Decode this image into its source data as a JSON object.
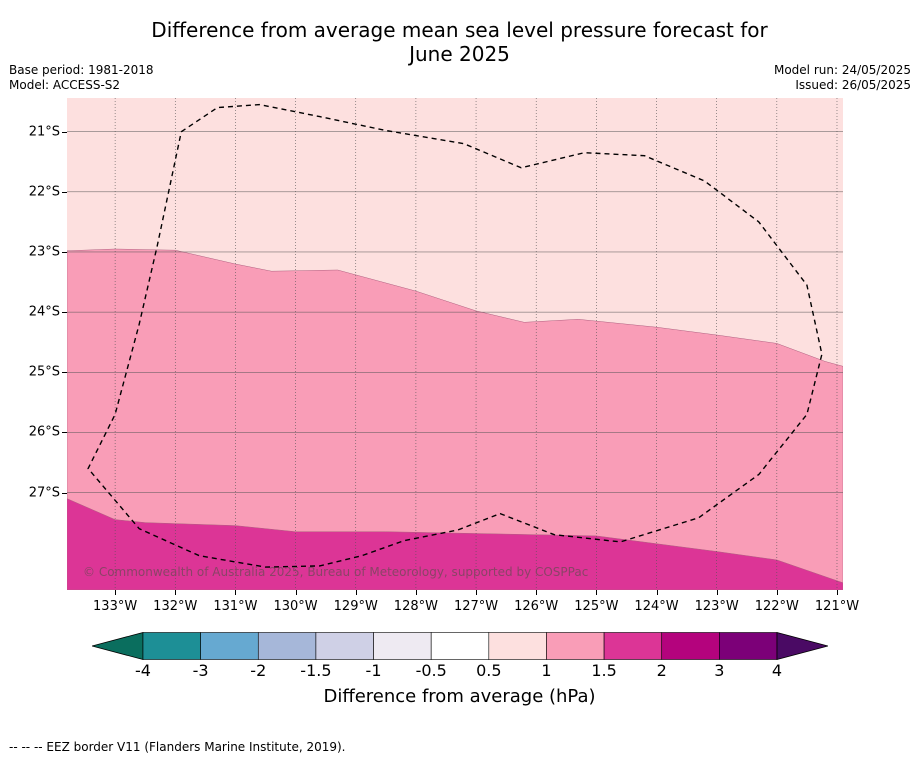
{
  "title": "Difference from average mean sea level pressure forecast for June 2025",
  "base_period": "Base period: 1981-2018",
  "model": "Model: ACCESS-S2",
  "model_run": "Model run: 24/05/2025",
  "issued": "Issued: 26/05/2025",
  "copyright": "© Commonwealth of Australia 2025, Bureau of Meteorology, supported by COSPPac",
  "footnote": "--  --  -- EEZ border V11 (Flanders Marine Institute, 2019).",
  "colorbar": {
    "title": "Difference from average (hPa)",
    "tick_labels": [
      "-4",
      "-3",
      "-2",
      "-1.5",
      "-1",
      "-0.5",
      "0.5",
      "1",
      "1.5",
      "2",
      "3",
      "4"
    ],
    "colors": [
      "#1d8f96",
      "#66a9d1",
      "#a6b7d9",
      "#cfd0e6",
      "#eeeaf2",
      "#ffffff",
      "#fde0df",
      "#f99db7",
      "#dc3596",
      "#b4037d",
      "#7c0078"
    ],
    "under_color": "#0a6e5e",
    "over_color": "#4a0a64"
  },
  "map": {
    "lon_labels": [
      "133°W",
      "132°W",
      "131°W",
      "130°W",
      "129°W",
      "128°W",
      "127°W",
      "126°W",
      "125°W",
      "124°W",
      "123°W",
      "122°W",
      "121°W"
    ],
    "lat_labels": [
      "21°S",
      "22°S",
      "23°S",
      "24°S",
      "25°S",
      "26°S",
      "27°S"
    ],
    "lon_values": [
      -133,
      -132,
      -131,
      -130,
      -129,
      -128,
      -127,
      -126,
      -125,
      -124,
      -123,
      -122,
      -121
    ],
    "lat_values": [
      -21,
      -22,
      -23,
      -24,
      -25,
      -26,
      -27
    ],
    "lon_range": [
      -133.8,
      -120.9
    ],
    "lat_range": [
      -20.44,
      -28.62
    ],
    "regions": [
      {
        "name": "0.5 to 1 hPa",
        "color": "#fde0df",
        "boundary": [
          [
            -133.8,
            -20.44
          ],
          [
            -120.9,
            -20.44
          ],
          [
            -120.9,
            -28.62
          ],
          [
            -133.8,
            -28.62
          ]
        ]
      },
      {
        "name": "1 to 1.5 hPa",
        "color": "#f99db7",
        "boundary": [
          [
            -133.8,
            -22.98
          ],
          [
            -133.0,
            -22.95
          ],
          [
            -132.0,
            -22.97
          ],
          [
            -131.0,
            -23.2
          ],
          [
            -130.4,
            -23.32
          ],
          [
            -129.3,
            -23.3
          ],
          [
            -128.0,
            -23.65
          ],
          [
            -127.0,
            -23.98
          ],
          [
            -126.2,
            -24.17
          ],
          [
            -125.3,
            -24.12
          ],
          [
            -124.0,
            -24.25
          ],
          [
            -123.0,
            -24.38
          ],
          [
            -122.0,
            -24.52
          ],
          [
            -121.2,
            -24.82
          ],
          [
            -120.9,
            -24.9
          ],
          [
            -120.9,
            -28.62
          ],
          [
            -133.8,
            -28.62
          ]
        ]
      },
      {
        "name": "1.5 to 2 hPa",
        "color": "#dc3596",
        "boundary": [
          [
            -133.8,
            -27.1
          ],
          [
            -133.0,
            -27.45
          ],
          [
            -132.5,
            -27.5
          ],
          [
            -131.0,
            -27.55
          ],
          [
            -130.0,
            -27.65
          ],
          [
            -128.5,
            -27.65
          ],
          [
            -126.0,
            -27.7
          ],
          [
            -125.0,
            -27.72
          ],
          [
            -124.0,
            -27.85
          ],
          [
            -123.0,
            -27.98
          ],
          [
            -122.0,
            -28.12
          ],
          [
            -120.9,
            -28.5
          ],
          [
            -120.9,
            -28.62
          ],
          [
            -133.8,
            -28.62
          ]
        ]
      }
    ],
    "eez_border": [
      [
        -131.9,
        -21.0
      ],
      [
        -131.3,
        -20.6
      ],
      [
        -130.6,
        -20.55
      ],
      [
        -129.6,
        -20.75
      ],
      [
        -128.5,
        -20.98
      ],
      [
        -127.2,
        -21.2
      ],
      [
        -126.25,
        -21.6
      ],
      [
        -125.2,
        -21.35
      ],
      [
        -124.2,
        -21.4
      ],
      [
        -123.2,
        -21.82
      ],
      [
        -122.3,
        -22.5
      ],
      [
        -121.5,
        -23.55
      ],
      [
        -121.25,
        -24.7
      ],
      [
        -121.5,
        -25.7
      ],
      [
        -122.3,
        -26.7
      ],
      [
        -123.3,
        -27.42
      ],
      [
        -124.6,
        -27.82
      ],
      [
        -125.7,
        -27.7
      ],
      [
        -126.6,
        -27.35
      ],
      [
        -127.3,
        -27.62
      ],
      [
        -128.2,
        -27.8
      ],
      [
        -128.9,
        -28.05
      ],
      [
        -129.6,
        -28.22
      ],
      [
        -130.5,
        -28.24
      ],
      [
        -131.6,
        -28.05
      ],
      [
        -132.6,
        -27.6
      ],
      [
        -133.45,
        -26.6
      ],
      [
        -133.0,
        -25.7
      ],
      [
        -132.6,
        -24.2
      ],
      [
        -132.3,
        -22.9
      ],
      [
        -131.9,
        -21.0
      ]
    ],
    "grid_color": "#555555"
  }
}
